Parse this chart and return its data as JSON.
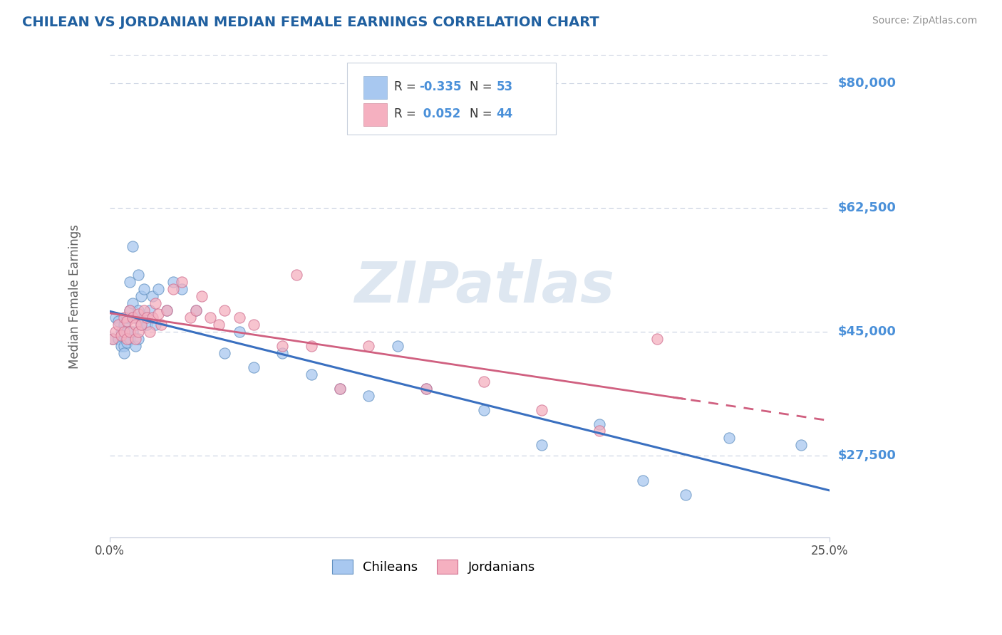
{
  "title": "CHILEAN VS JORDANIAN MEDIAN FEMALE EARNINGS CORRELATION CHART",
  "source": "Source: ZipAtlas.com",
  "ylabel": "Median Female Earnings",
  "yticks": [
    27500,
    45000,
    62500,
    80000
  ],
  "ytick_labels": [
    "$27,500",
    "$45,000",
    "$62,500",
    "$80,000"
  ],
  "xmin": 0.0,
  "xmax": 0.25,
  "ymin": 16000,
  "ymax": 84000,
  "blue_color": "#a8c8f0",
  "pink_color": "#f5b0c0",
  "blue_edge": "#6090c0",
  "pink_edge": "#d07090",
  "line_blue": "#3a70c0",
  "line_pink": "#d06080",
  "watermark_color": "#c8d8e8",
  "background_color": "#ffffff",
  "grid_color": "#c8d0e0",
  "title_color": "#2060a0",
  "axis_label_color": "#606060",
  "ytick_color": "#4a90d9",
  "chilean_x": [
    0.001,
    0.002,
    0.003,
    0.003,
    0.004,
    0.004,
    0.005,
    0.005,
    0.005,
    0.005,
    0.006,
    0.006,
    0.006,
    0.007,
    0.007,
    0.007,
    0.008,
    0.008,
    0.008,
    0.009,
    0.009,
    0.01,
    0.01,
    0.01,
    0.011,
    0.011,
    0.012,
    0.012,
    0.013,
    0.014,
    0.015,
    0.016,
    0.017,
    0.02,
    0.022,
    0.025,
    0.03,
    0.04,
    0.045,
    0.05,
    0.06,
    0.07,
    0.08,
    0.09,
    0.1,
    0.11,
    0.13,
    0.15,
    0.17,
    0.185,
    0.2,
    0.215,
    0.24
  ],
  "chilean_y": [
    44000,
    47000,
    46500,
    44000,
    45000,
    43000,
    46000,
    44500,
    43000,
    42000,
    47000,
    45000,
    43500,
    52000,
    48000,
    44000,
    57000,
    49000,
    45000,
    47000,
    43000,
    53000,
    48000,
    44000,
    50000,
    46000,
    51000,
    47000,
    46000,
    48000,
    50000,
    46000,
    51000,
    48000,
    52000,
    51000,
    48000,
    42000,
    45000,
    40000,
    42000,
    39000,
    37000,
    36000,
    43000,
    37000,
    34000,
    29000,
    32000,
    24000,
    22000,
    30000,
    29000
  ],
  "jordanian_x": [
    0.001,
    0.002,
    0.003,
    0.004,
    0.005,
    0.005,
    0.006,
    0.006,
    0.007,
    0.007,
    0.008,
    0.009,
    0.009,
    0.01,
    0.01,
    0.011,
    0.012,
    0.013,
    0.014,
    0.015,
    0.016,
    0.017,
    0.018,
    0.02,
    0.022,
    0.025,
    0.028,
    0.03,
    0.032,
    0.035,
    0.038,
    0.04,
    0.045,
    0.05,
    0.06,
    0.065,
    0.07,
    0.08,
    0.09,
    0.11,
    0.13,
    0.15,
    0.17,
    0.19
  ],
  "jordanian_y": [
    44000,
    45000,
    46000,
    44500,
    47000,
    45000,
    46500,
    44000,
    48000,
    45000,
    47000,
    46000,
    44000,
    47500,
    45000,
    46000,
    48000,
    47000,
    45000,
    47000,
    49000,
    47500,
    46000,
    48000,
    51000,
    52000,
    47000,
    48000,
    50000,
    47000,
    46000,
    48000,
    47000,
    46000,
    43000,
    53000,
    43000,
    37000,
    43000,
    37000,
    38000,
    34000,
    31000,
    44000
  ],
  "legend_blue_label": "R = -0.335   N = 53",
  "legend_pink_label": "R =  0.052   N = 44",
  "bottom_legend": [
    "Chileans",
    "Jordanians"
  ]
}
